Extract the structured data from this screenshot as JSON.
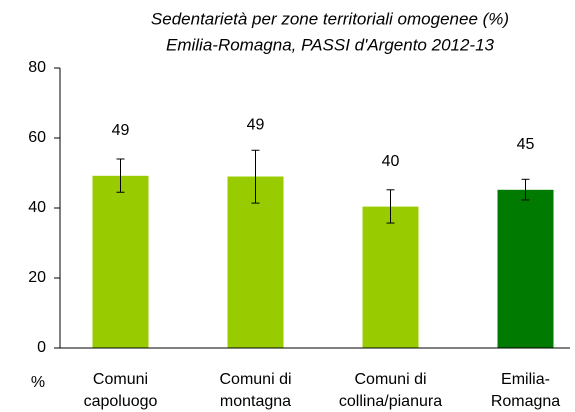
{
  "chart_data": {
    "type": "bar",
    "title": [
      "Sedentarietà per zone territoriali omogenee (%)",
      "Emilia-Romagna, PASSI d'Argento 2012-13"
    ],
    "y_label": "%",
    "categories": [
      [
        "Comuni",
        "capoluogo"
      ],
      [
        "Comuni di",
        "montagna"
      ],
      [
        "Comuni di",
        "collina/pianura"
      ],
      [
        "Emilia-",
        "Romagna"
      ]
    ],
    "values": [
      49.2,
      49.0,
      40.4,
      45.2
    ],
    "value_labels": [
      "49",
      "49",
      "40",
      "45"
    ],
    "ci_low": [
      44.5,
      41.4,
      35.7,
      42.3
    ],
    "ci_high": [
      54.0,
      56.5,
      45.2,
      48.2
    ],
    "colors": [
      "#99cc00",
      "#99cc00",
      "#99cc00",
      "#007a00"
    ],
    "ylim": [
      0,
      80
    ],
    "yticks": [
      0,
      20,
      40,
      60,
      80
    ],
    "grid": false
  }
}
